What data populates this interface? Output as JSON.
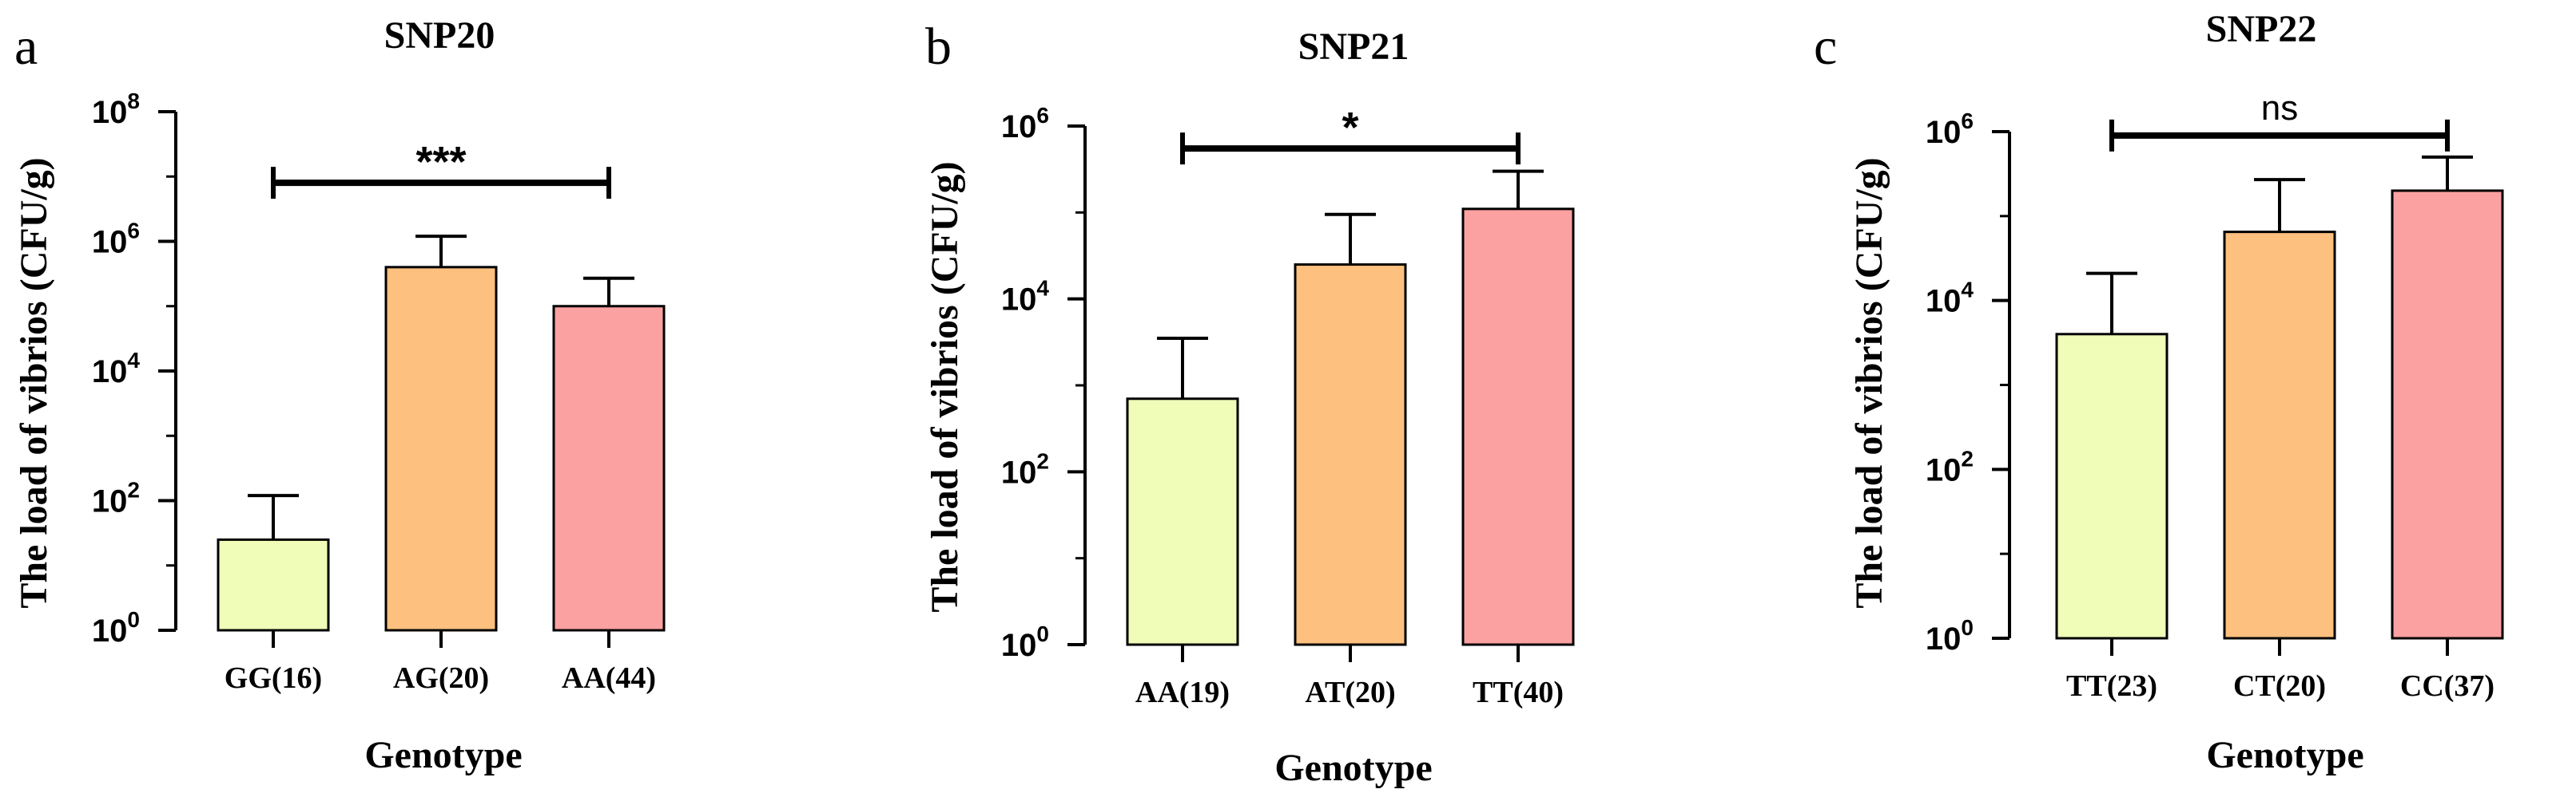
{
  "chart_data": [
    {
      "panel_letter": "a",
      "type": "bar",
      "title": "SNP20",
      "xlabel": "Genotype",
      "ylabel": "The load of vibrios (CFU/g)",
      "yscale": "log10",
      "ylim": [
        1,
        100000000
      ],
      "yticks": [
        1,
        100,
        10000,
        1000000,
        100000000
      ],
      "ytick_exponents": [
        "0",
        "2",
        "4",
        "6",
        "8"
      ],
      "categories": [
        "GG(16)",
        "AG(20)",
        "AA(44)"
      ],
      "values": [
        25,
        400000,
        100000
      ],
      "error_upper": [
        120,
        1200000,
        270000
      ],
      "colors": [
        "#EFFDB8",
        "#FDC07E",
        "#FCA1A1"
      ],
      "significance": {
        "label": "***",
        "from": 0,
        "to": 2,
        "y": 8000000
      }
    },
    {
      "panel_letter": "b",
      "type": "bar",
      "title": "SNP21",
      "xlabel": "Genotype",
      "ylabel": "The load of vibrios (CFU/g)",
      "yscale": "log10",
      "ylim": [
        1,
        1000000
      ],
      "yticks": [
        1,
        100,
        10000,
        1000000
      ],
      "ytick_exponents": [
        "0",
        "2",
        "4",
        "6"
      ],
      "categories": [
        "AA(19)",
        "AT(20)",
        "TT(40)"
      ],
      "values": [
        700,
        25000,
        110000
      ],
      "error_upper": [
        3500,
        95000,
        300000
      ],
      "colors": [
        "#EFFDB8",
        "#FDC07E",
        "#FCA1A1"
      ],
      "significance": {
        "label": "*",
        "from": 0,
        "to": 2,
        "y": 550000
      }
    },
    {
      "panel_letter": "c",
      "type": "bar",
      "title": "SNP22",
      "xlabel": "Genotype",
      "ylabel": "The load of vibrios (CFU/g)",
      "yscale": "log10",
      "ylim": [
        1,
        1000000
      ],
      "yticks": [
        1,
        100,
        10000,
        1000000
      ],
      "ytick_exponents": [
        "0",
        "2",
        "4",
        "6"
      ],
      "categories": [
        "TT(23)",
        "CT(20)",
        "CC(37)"
      ],
      "values": [
        4000,
        65000,
        200000
      ],
      "error_upper": [
        21000,
        270000,
        500000
      ],
      "colors": [
        "#EFFDB8",
        "#FDC07E",
        "#FCA1A1"
      ],
      "significance": {
        "label": "ns",
        "from": 0,
        "to": 2,
        "y": 900000
      }
    }
  ]
}
